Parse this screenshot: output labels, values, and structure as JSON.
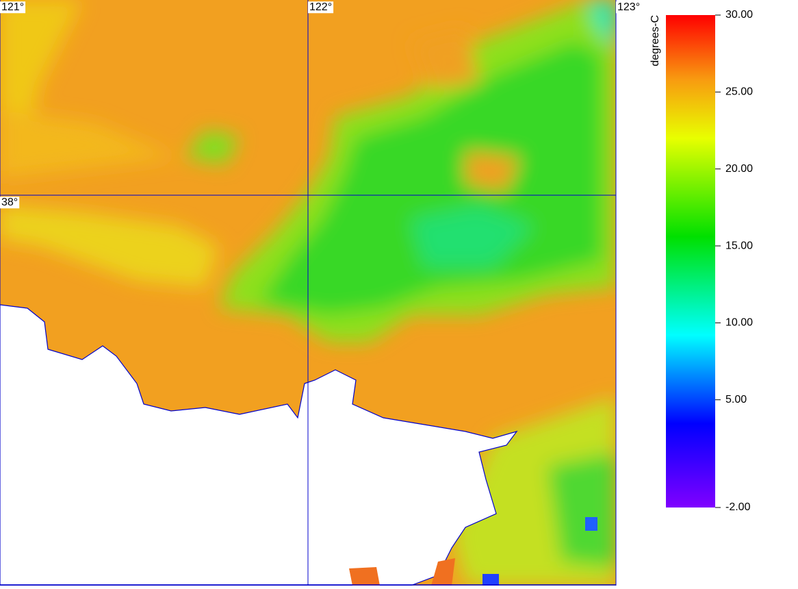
{
  "map": {
    "lonlim": [
      121,
      123
    ],
    "latlim": [
      37,
      38.5
    ],
    "lon_ticks": [
      {
        "value": 121,
        "label": "121°"
      },
      {
        "value": 122,
        "label": "122°"
      },
      {
        "value": 123,
        "label": "123°"
      }
    ],
    "lat_ticks": [
      {
        "value": 38,
        "label": "38°"
      }
    ]
  },
  "colorbar": {
    "unit": "degrees-C",
    "range": [
      -2,
      30
    ],
    "ticks": [
      {
        "value": 30,
        "label": "30.00"
      },
      {
        "value": 25,
        "label": "25.00"
      },
      {
        "value": 20,
        "label": "20.00"
      },
      {
        "value": 15,
        "label": "15.00"
      },
      {
        "value": 10,
        "label": "10.00"
      },
      {
        "value": 5,
        "label": "5.00"
      },
      {
        "value": -2,
        "label": "-2.00"
      }
    ]
  }
}
